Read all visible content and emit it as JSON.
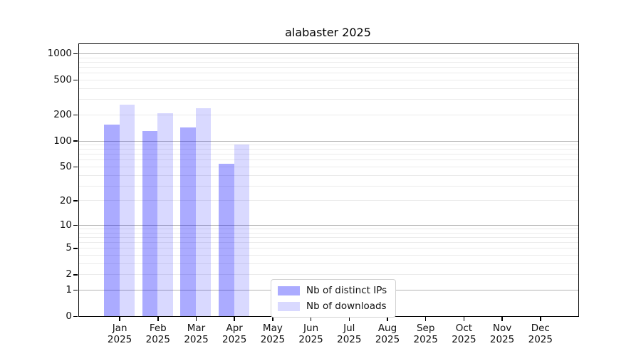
{
  "chart_data": {
    "type": "bar",
    "title": "alabaster 2025",
    "scale": "log1p",
    "categories": [
      "Jan",
      "Feb",
      "Mar",
      "Apr",
      "May",
      "Jun",
      "Jul",
      "Aug",
      "Sep",
      "Oct",
      "Nov",
      "Dec"
    ],
    "category_year": "2025",
    "series": [
      {
        "name": "Nb of distinct IPs",
        "color": "rgba(0,0,255,0.33)",
        "values": [
          152,
          130,
          143,
          54,
          0,
          0,
          0,
          0,
          0,
          0,
          0,
          0
        ]
      },
      {
        "name": "Nb of downloads",
        "color": "rgba(0,0,255,0.15)",
        "values": [
          258,
          208,
          237,
          91,
          0,
          0,
          0,
          0,
          0,
          0,
          0,
          0
        ]
      }
    ],
    "yticks": [
      0,
      1,
      2,
      5,
      10,
      20,
      50,
      100,
      200,
      500,
      1000
    ],
    "ylim": [
      0,
      1280
    ],
    "grid": {
      "major_lines": [
        1,
        10,
        100,
        1000
      ],
      "minor_multiples": [
        2,
        3,
        4,
        5,
        6,
        7,
        8,
        9
      ]
    },
    "legend": {
      "position": "lower center"
    },
    "colors": {
      "major_grid": "#b4b4b4",
      "minor_grid": "#ebebeb",
      "spine": "#000000",
      "background": "#ffffff"
    }
  }
}
